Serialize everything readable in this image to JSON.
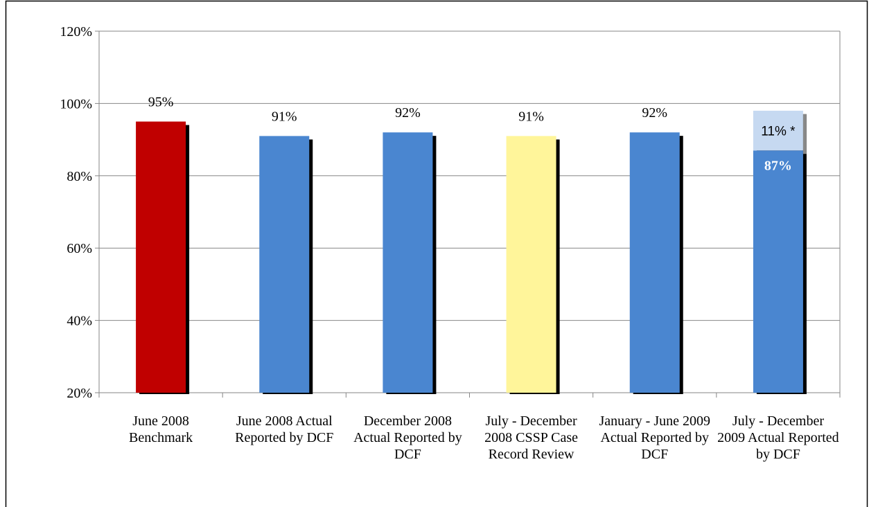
{
  "chart_data": {
    "type": "bar",
    "categories": [
      "June 2008 Benchmark",
      "June 2008 Actual Reported by DCF",
      "December 2008 Actual Reported by DCF",
      "July - December 2008 CSSP Case Record Review",
      "January - June 2009 Actual Reported by DCF",
      "July - December 2009 Actual Reported by DCF"
    ],
    "values": [
      95,
      91,
      92,
      91,
      92,
      87
    ],
    "value_labels": [
      "95%",
      "91%",
      "92%",
      "91%",
      "92%",
      "87%"
    ],
    "colors": [
      "#c00000",
      "#4a86d0",
      "#4a86d0",
      "#fff59a",
      "#4a86d0",
      "#4a86d0"
    ],
    "stack_values": [
      null,
      null,
      null,
      null,
      null,
      11
    ],
    "stack_value_labels": [
      null,
      null,
      null,
      null,
      null,
      "11% *"
    ],
    "stack_color": "#c6d9f1",
    "ylim": [
      20,
      120
    ],
    "yticks": [
      {
        "value": 20,
        "label": "20%"
      },
      {
        "value": 40,
        "label": "40%"
      },
      {
        "value": 60,
        "label": "60%"
      },
      {
        "value": 80,
        "label": "80%"
      },
      {
        "value": 100,
        "label": "100%"
      },
      {
        "value": 120,
        "label": "120%"
      }
    ],
    "grid": true
  }
}
